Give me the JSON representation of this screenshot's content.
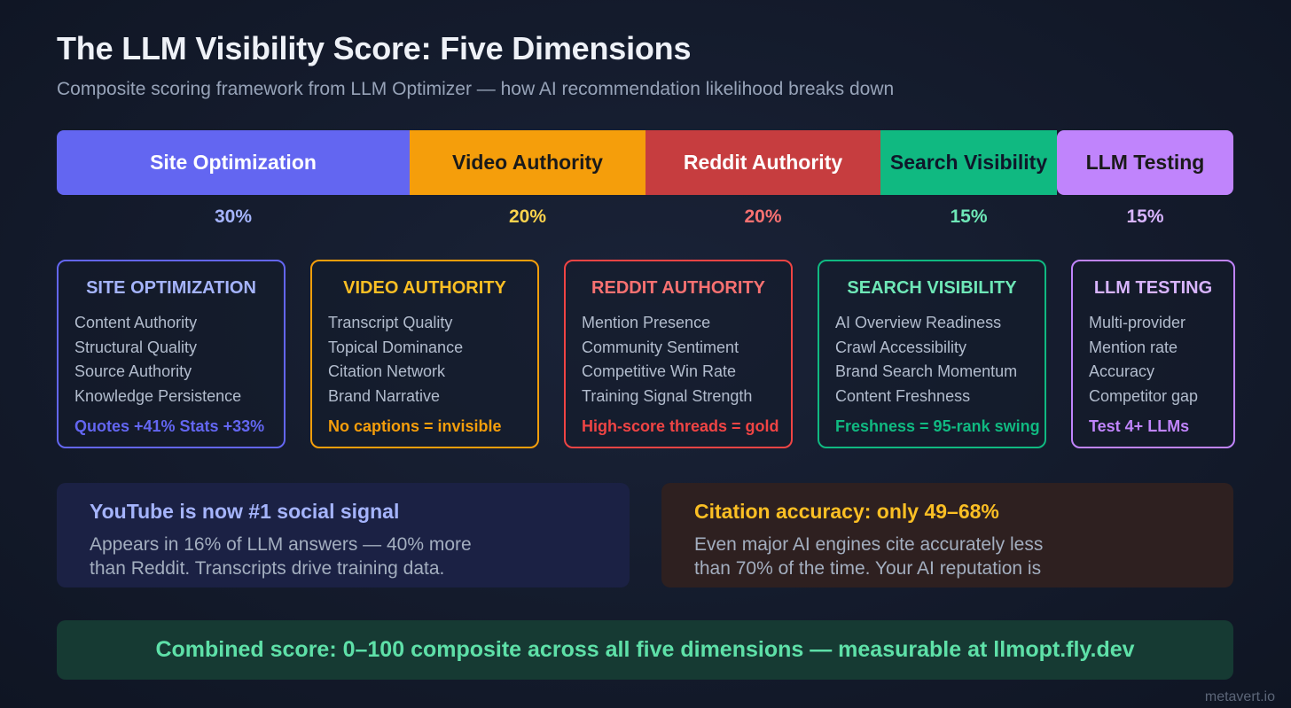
{
  "header": {
    "title": "The LLM Visibility Score: Five Dimensions",
    "subtitle": "Composite scoring framework from LLM Optimizer — how AI recommendation likelihood breaks down"
  },
  "weights": [
    {
      "label": "Site Optimization",
      "percent": "30%",
      "weight": 30,
      "color": "#6366f1",
      "text_color": "#ffffff",
      "pct_color": "#a5b4fc"
    },
    {
      "label": "Video Authority",
      "percent": "20%",
      "weight": 20,
      "color": "#f59e0b",
      "text_color": "#1a1a1a",
      "pct_color": "#fcd34d"
    },
    {
      "label": "Reddit Authority",
      "percent": "20%",
      "weight": 20,
      "color": "#c63d3f",
      "text_color": "#ffffff",
      "pct_color": "#f87171"
    },
    {
      "label": "Search Visibility",
      "percent": "15%",
      "weight": 15,
      "color": "#10b981",
      "text_color": "#0f172a",
      "pct_color": "#6ee7b7"
    },
    {
      "label": "LLM Testing",
      "percent": "15%",
      "weight": 15,
      "color": "#c084fc",
      "text_color": "#1a1a1a",
      "pct_color": "#d8b4fe"
    }
  ],
  "cards": [
    {
      "title": "SITE OPTIMIZATION",
      "color": "#6366f1",
      "title_color": "#a5b4fc",
      "items": [
        "Content Authority",
        "Structural Quality",
        "Source Authority",
        "Knowledge Persistence"
      ],
      "note": "Quotes +41% Stats +33%",
      "note_color": "#6366f1"
    },
    {
      "title": "VIDEO AUTHORITY",
      "color": "#f59e0b",
      "title_color": "#fbbf24",
      "items": [
        "Transcript Quality",
        "Topical Dominance",
        "Citation Network",
        "Brand Narrative"
      ],
      "note": "No captions = invisible",
      "note_color": "#f59e0b"
    },
    {
      "title": "REDDIT AUTHORITY",
      "color": "#ef4444",
      "title_color": "#f87171",
      "items": [
        "Mention Presence",
        "Community Sentiment",
        "Competitive Win Rate",
        "Training Signal Strength"
      ],
      "note": "High-score threads = gold",
      "note_color": "#ef4444"
    },
    {
      "title": "SEARCH VISIBILITY",
      "color": "#10b981",
      "title_color": "#6ee7b7",
      "items": [
        "AI Overview Readiness",
        "Crawl Accessibility",
        "Brand Search Momentum",
        "Content Freshness"
      ],
      "note": "Freshness = 95-rank swing",
      "note_color": "#10b981"
    },
    {
      "title": "LLM TESTING",
      "color": "#c084fc",
      "title_color": "#d8b4fe",
      "items": [
        "Multi-provider",
        "Mention rate",
        "Accuracy",
        "Competitor gap"
      ],
      "note": "Test 4+ LLMs",
      "note_color": "#c084fc"
    }
  ],
  "callouts": {
    "youtube": {
      "title": "YouTube is now #1 social signal",
      "body_line1": "Appears in 16% of LLM answers — 40% more",
      "body_line2": "than Reddit. Transcripts drive training data."
    },
    "citation": {
      "title": "Citation accuracy: only 49–68%",
      "body_line1": "Even major AI engines cite accurately less",
      "body_line2": "than 70% of the time. Your AI reputation is"
    }
  },
  "banner": "Combined score: 0–100 composite across all five dimensions — measurable at llmopt.fly.dev",
  "footer": "metavert.io"
}
